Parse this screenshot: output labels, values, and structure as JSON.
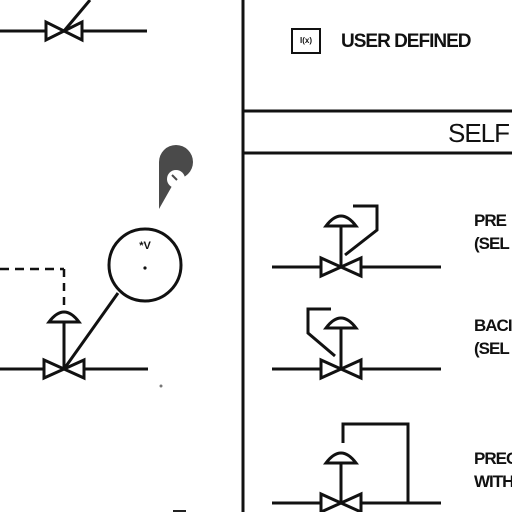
{
  "legend": {
    "user_defined_symbol": "I(x)",
    "user_defined_label": "USER DEFINED",
    "section_heading": "SELF A",
    "items": [
      {
        "line1": "PRE",
        "line2": "(SEL"
      },
      {
        "line1": "BACI",
        "line2": "(SEL"
      },
      {
        "line1": "PREC",
        "line2": "WITH"
      }
    ]
  },
  "diagram": {
    "instrument_symbol": "*V",
    "line_color": "#111111",
    "pin_color": "#4a4a4a",
    "pin_icon": "map-pin-icon"
  }
}
